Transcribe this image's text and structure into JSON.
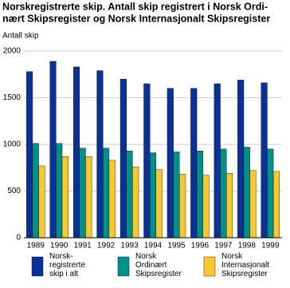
{
  "chart_data": {
    "type": "bar",
    "title": [
      "Norskregistrerte skip. Antall skip registrert i Norsk Ordi-",
      "nært Skipsregister og Norsk Internasjonalt Skipsregister"
    ],
    "y_label": "Antall skip",
    "categories": [
      "1989",
      "1990",
      "1991",
      "1992",
      "1993",
      "1994",
      "1995",
      "1996",
      "1997",
      "1998",
      "1999"
    ],
    "series": [
      {
        "name": "Norsk-\nregistrerte\nskip i alt",
        "color": "#0a3296",
        "values": [
          1780,
          1890,
          1830,
          1790,
          1700,
          1650,
          1600,
          1600,
          1650,
          1690,
          1660
        ]
      },
      {
        "name": "Norsk\nOrdinært\nSkipsregister",
        "color": "#00908a",
        "values": [
          1010,
          1010,
          960,
          960,
          930,
          910,
          920,
          930,
          950,
          970,
          950
        ]
      },
      {
        "name": "Norsk\nInternasjonalt\nSkipsregister",
        "color": "#f7c830",
        "values": [
          770,
          870,
          870,
          830,
          760,
          730,
          680,
          670,
          690,
          720,
          710
        ]
      }
    ],
    "ylim": [
      0,
      2000
    ],
    "yticks": [
      0,
      500,
      1000,
      1500,
      2000
    ],
    "grid": true
  }
}
